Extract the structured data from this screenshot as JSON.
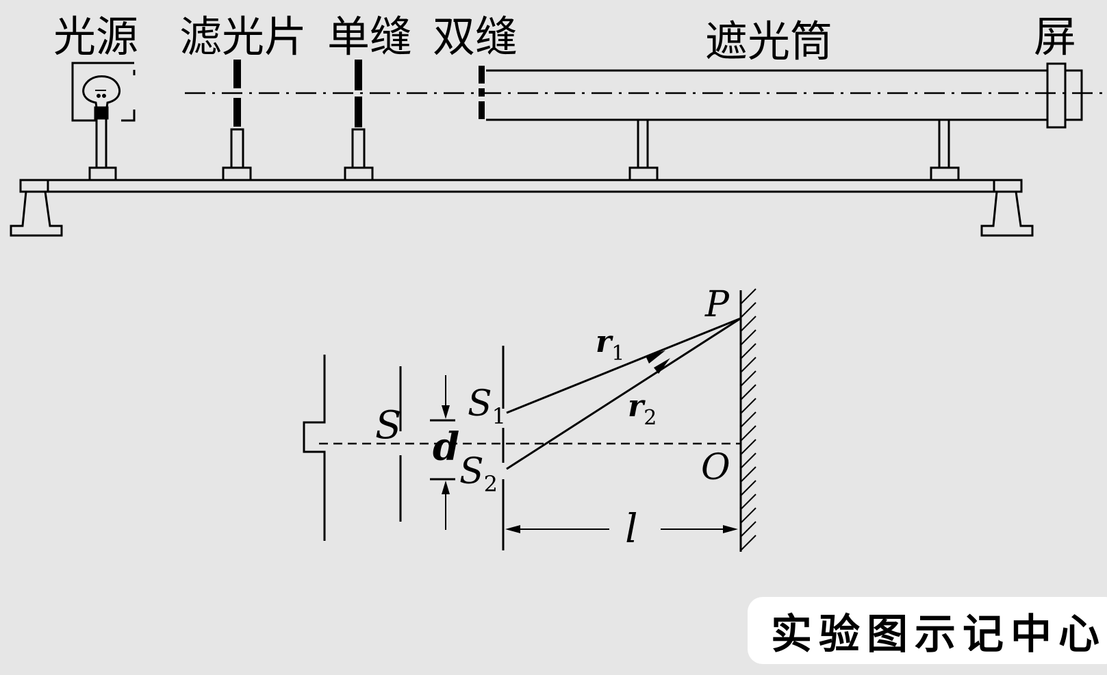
{
  "apparatus": {
    "labels": {
      "light_source": "光源",
      "filter": "滤光片",
      "single_slit": "单缝",
      "double_slit": "双缝",
      "tube": "遮光筒",
      "screen": "屏"
    }
  },
  "schematic": {
    "labels": {
      "source": "S",
      "slit1_letter": "S",
      "slit1_sub": "1",
      "slit2_letter": "S",
      "slit2_sub": "2",
      "separation": "d",
      "point_p": "P",
      "point_o": "O",
      "ray1_letter": "r",
      "ray1_sub": "1",
      "ray2_letter": "r",
      "ray2_sub": "2",
      "distance": "l"
    }
  },
  "badge": {
    "text": "实验图示记中心"
  }
}
